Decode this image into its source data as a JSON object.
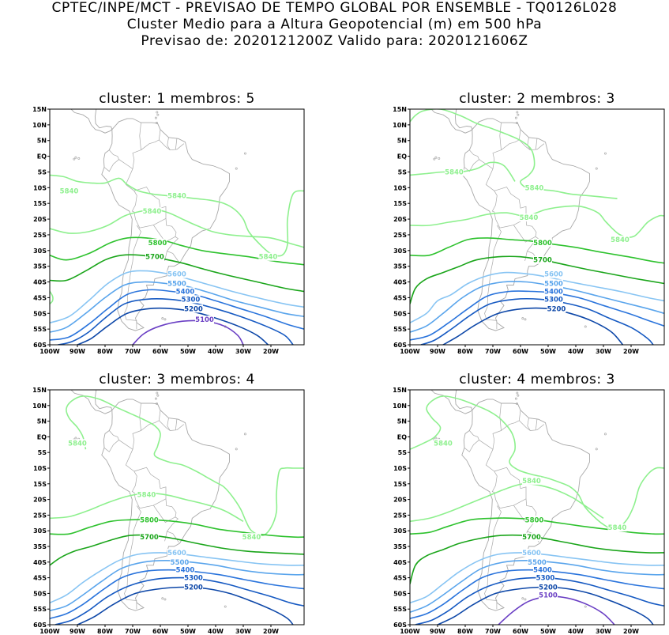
{
  "title": {
    "line1": "CPTEC/INPE/MCT - PREVISAO DE TEMPO GLOBAL POR ENSEMBLE - TQ0126L028",
    "line2": "Cluster Medio para a Altura Geopotencial (m) em 500 hPa",
    "line3": "Previsao de: 2020121200Z   Valido para: 2020121606Z"
  },
  "colors": {
    "5840": "#8ef08e",
    "5800": "#2ec22e",
    "5700": "#1aa51a",
    "5600": "#87c4f3",
    "5500": "#5aa5ec",
    "5400": "#2a74dc",
    "5300": "#1559c2",
    "5200": "#0d47a8",
    "5100": "#6a3fc4",
    "coastline": "#a8a8a8"
  },
  "lat_ticks": [
    "15N",
    "10N",
    "5N",
    "EQ",
    "5S",
    "10S",
    "15S",
    "20S",
    "25S",
    "30S",
    "35S",
    "40S",
    "45S",
    "50S",
    "55S",
    "60S"
  ],
  "lon_ticks": [
    "100W",
    "90W",
    "80W",
    "70W",
    "60W",
    "50W",
    "40W",
    "30W",
    "20W"
  ],
  "clusters": [
    {
      "title": "cluster: 1   membros: 5",
      "contours": [
        {
          "level": "5840",
          "labels": [
            {
              "text": "5840",
              "lon": -93,
              "lat": -11
            },
            {
              "text": "5840",
              "lon": -54,
              "lat": -12.5
            },
            {
              "text": "5840",
              "lon": -63,
              "lat": -17.5
            },
            {
              "text": "5840",
              "lon": -21,
              "lat": -32
            }
          ]
        },
        {
          "level": "5800",
          "labels": [
            {
              "text": "5800",
              "lon": -61,
              "lat": -27.5
            }
          ]
        },
        {
          "level": "5700",
          "labels": [
            {
              "text": "5700",
              "lon": -62,
              "lat": -32
            }
          ]
        },
        {
          "level": "5600",
          "labels": [
            {
              "text": "5600",
              "lon": -54,
              "lat": -37.5
            }
          ]
        },
        {
          "level": "5500",
          "labels": [
            {
              "text": "5500",
              "lon": -54,
              "lat": -40.5
            }
          ]
        },
        {
          "level": "5400",
          "labels": [
            {
              "text": "5400",
              "lon": -51,
              "lat": -43
            }
          ]
        },
        {
          "level": "5300",
          "labels": [
            {
              "text": "5300",
              "lon": -49,
              "lat": -45.5
            }
          ]
        },
        {
          "level": "5200",
          "labels": [
            {
              "text": "5200",
              "lon": -48,
              "lat": -48.5
            }
          ]
        },
        {
          "level": "5100",
          "labels": [
            {
              "text": "5100",
              "lon": -44,
              "lat": -52
            }
          ]
        }
      ]
    },
    {
      "title": "cluster: 2   membros: 3",
      "contours": [
        {
          "level": "5840",
          "labels": [
            {
              "text": "5840",
              "lon": -84,
              "lat": -5
            },
            {
              "text": "5840",
              "lon": -55,
              "lat": -10
            },
            {
              "text": "5840",
              "lon": -57,
              "lat": -19.5
            },
            {
              "text": "5840",
              "lon": -24,
              "lat": -26.5
            }
          ]
        },
        {
          "level": "5800",
          "labels": [
            {
              "text": "5800",
              "lon": -52,
              "lat": -27.5
            }
          ]
        },
        {
          "level": "5700",
          "labels": [
            {
              "text": "5700",
              "lon": -52,
              "lat": -33
            }
          ]
        },
        {
          "level": "5600",
          "labels": [
            {
              "text": "5600",
              "lon": -48,
              "lat": -37.5
            }
          ]
        },
        {
          "level": "5500",
          "labels": [
            {
              "text": "5500",
              "lon": -48,
              "lat": -40.5
            }
          ]
        },
        {
          "level": "5400",
          "labels": [
            {
              "text": "5400",
              "lon": -48,
              "lat": -43
            }
          ]
        },
        {
          "level": "5300",
          "labels": [
            {
              "text": "5300",
              "lon": -48,
              "lat": -45.5
            }
          ]
        },
        {
          "level": "5200",
          "labels": [
            {
              "text": "5200",
              "lon": -47,
              "lat": -48.5
            }
          ]
        }
      ]
    },
    {
      "title": "cluster: 3   membros: 4",
      "contours": [
        {
          "level": "5840",
          "labels": [
            {
              "text": "5840",
              "lon": -90,
              "lat": -2
            },
            {
              "text": "5840",
              "lon": -65,
              "lat": -18.5
            },
            {
              "text": "5840",
              "lon": -27,
              "lat": -32
            }
          ]
        },
        {
          "level": "5800",
          "labels": [
            {
              "text": "5800",
              "lon": -64,
              "lat": -26.5
            }
          ]
        },
        {
          "level": "5700",
          "labels": [
            {
              "text": "5700",
              "lon": -64,
              "lat": -32
            }
          ]
        },
        {
          "level": "5600",
          "labels": [
            {
              "text": "5600",
              "lon": -54,
              "lat": -37
            }
          ]
        },
        {
          "level": "5500",
          "labels": [
            {
              "text": "5500",
              "lon": -53,
              "lat": -40
            }
          ]
        },
        {
          "level": "5400",
          "labels": [
            {
              "text": "5400",
              "lon": -51,
              "lat": -42.5
            }
          ]
        },
        {
          "level": "5300",
          "labels": [
            {
              "text": "5300",
              "lon": -48,
              "lat": -45
            }
          ]
        },
        {
          "level": "5200",
          "labels": [
            {
              "text": "5200",
              "lon": -48,
              "lat": -48
            }
          ]
        }
      ]
    },
    {
      "title": "cluster: 4   membros: 3",
      "contours": [
        {
          "level": "5840",
          "labels": [
            {
              "text": "5840",
              "lon": -88,
              "lat": -2
            },
            {
              "text": "5840",
              "lon": -56,
              "lat": -14
            },
            {
              "text": "5840",
              "lon": -25,
              "lat": -29
            }
          ]
        },
        {
          "level": "5800",
          "labels": [
            {
              "text": "5800",
              "lon": -55,
              "lat": -26.5
            }
          ]
        },
        {
          "level": "5700",
          "labels": [
            {
              "text": "5700",
              "lon": -56,
              "lat": -32
            }
          ]
        },
        {
          "level": "5600",
          "labels": [
            {
              "text": "5600",
              "lon": -56,
              "lat": -37
            }
          ]
        },
        {
          "level": "5500",
          "labels": [
            {
              "text": "5500",
              "lon": -54,
              "lat": -40
            }
          ]
        },
        {
          "level": "5400",
          "labels": [
            {
              "text": "5400",
              "lon": -52,
              "lat": -42.5
            }
          ]
        },
        {
          "level": "5300",
          "labels": [
            {
              "text": "5300",
              "lon": -51,
              "lat": -45
            }
          ]
        },
        {
          "level": "5200",
          "labels": [
            {
              "text": "5200",
              "lon": -50,
              "lat": -48
            }
          ]
        },
        {
          "level": "5100",
          "labels": [
            {
              "text": "5100",
              "lon": -50,
              "lat": -50.5
            }
          ]
        }
      ]
    }
  ]
}
